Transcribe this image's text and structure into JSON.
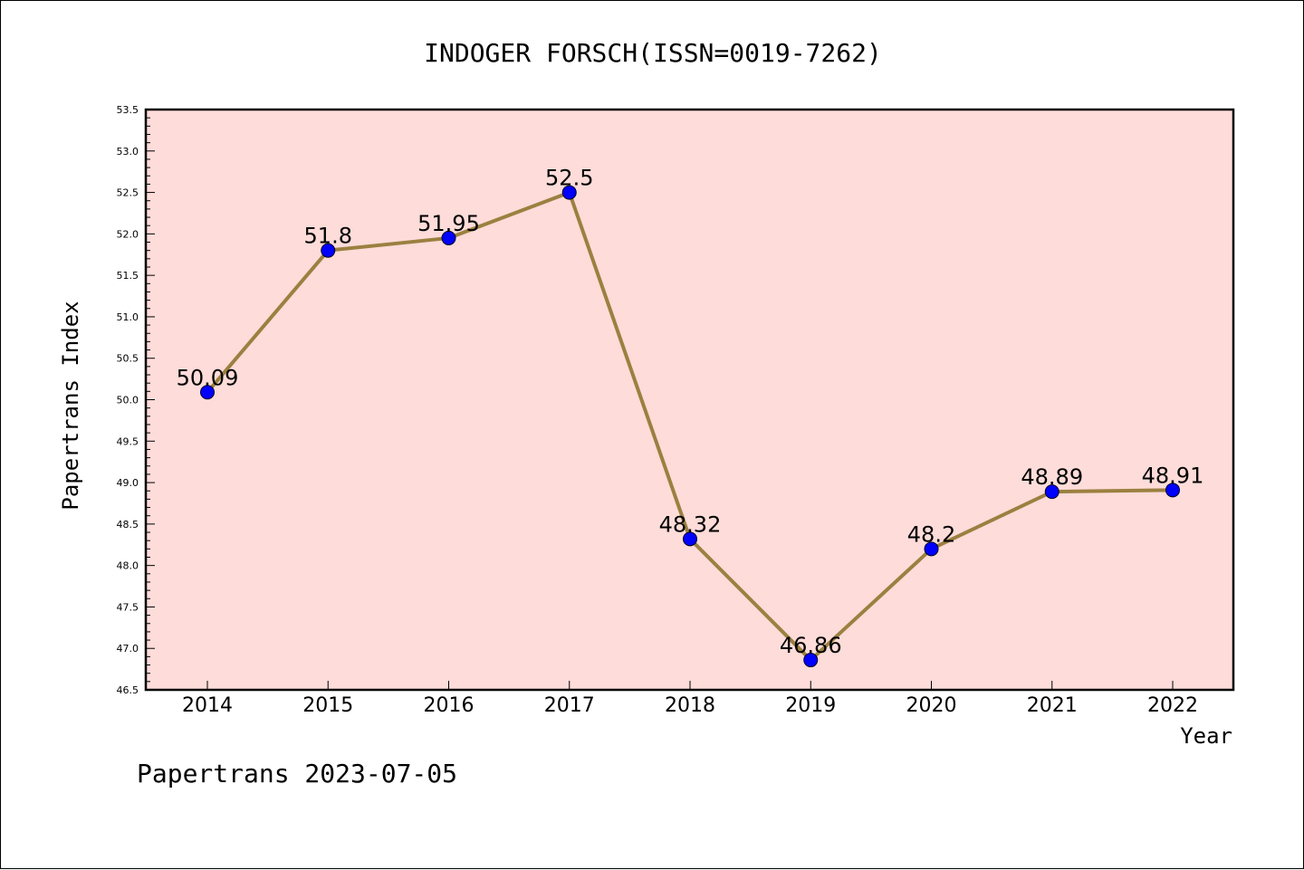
{
  "chart_data": {
    "type": "line",
    "title": "INDOGER FORSCH(ISSN=0019-7262)",
    "xlabel": "Year",
    "ylabel": "Papertrans Index",
    "categories": [
      "2014",
      "2015",
      "2016",
      "2017",
      "2018",
      "2019",
      "2020",
      "2021",
      "2022"
    ],
    "values": [
      50.09,
      51.8,
      51.95,
      52.5,
      48.32,
      46.86,
      48.2,
      48.89,
      48.91
    ],
    "data_labels": [
      "50.09",
      "51.8",
      "51.95",
      "52.5",
      "48.32",
      "46.86",
      "48.2",
      "48.89",
      "48.91"
    ],
    "ylim": [
      46.5,
      53.5
    ],
    "yticks": [
      "46.5",
      "47.0",
      "47.5",
      "48.0",
      "48.5",
      "49.0",
      "49.5",
      "50.0",
      "50.5",
      "51.0",
      "51.5",
      "52.0",
      "52.5",
      "53.0",
      "53.5"
    ],
    "grid": false,
    "colors": {
      "plot_background": "#fddcd9",
      "line": "#9b8040",
      "marker": "#0000ff",
      "axis": "#000000"
    }
  },
  "footer": "Papertrans 2023-07-05"
}
